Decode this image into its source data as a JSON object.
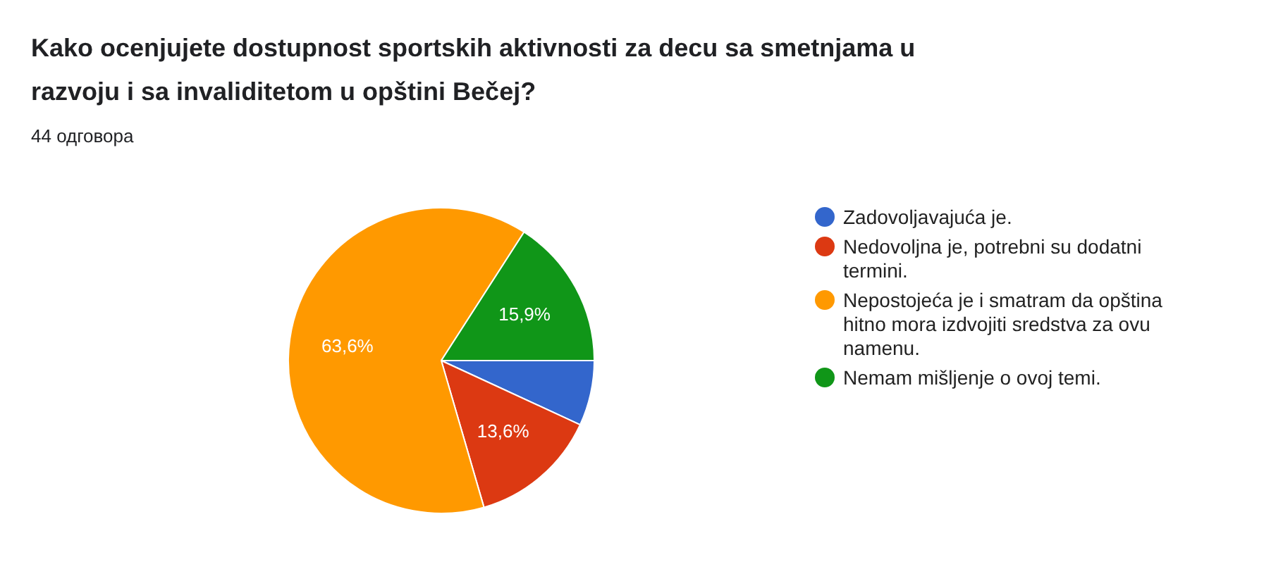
{
  "chart_data": {
    "type": "pie",
    "title": "Kako ocenjujete dostupnost sportskih aktivnosti za decu sa smetnjama u razvoju i sa invaliditetom u opštini Bečej?",
    "subtitle": "44 одговора",
    "categories": [
      "Zadovoljavajuća je.",
      "Nedovoljna je, potrebni su dodatni termini.",
      "Nepostojeća je i smatram da opština hitno mora izdvojiti sredstva za ovu namenu.",
      "Nemam mišljenje o ovoj temi."
    ],
    "values": [
      6.9,
      13.6,
      63.6,
      15.9
    ],
    "colors": [
      "#3366cc",
      "#dc3912",
      "#ff9900",
      "#109618"
    ],
    "value_labels": [
      null,
      "13,6%",
      "63,6%",
      "15,9%"
    ],
    "legend": "right"
  }
}
